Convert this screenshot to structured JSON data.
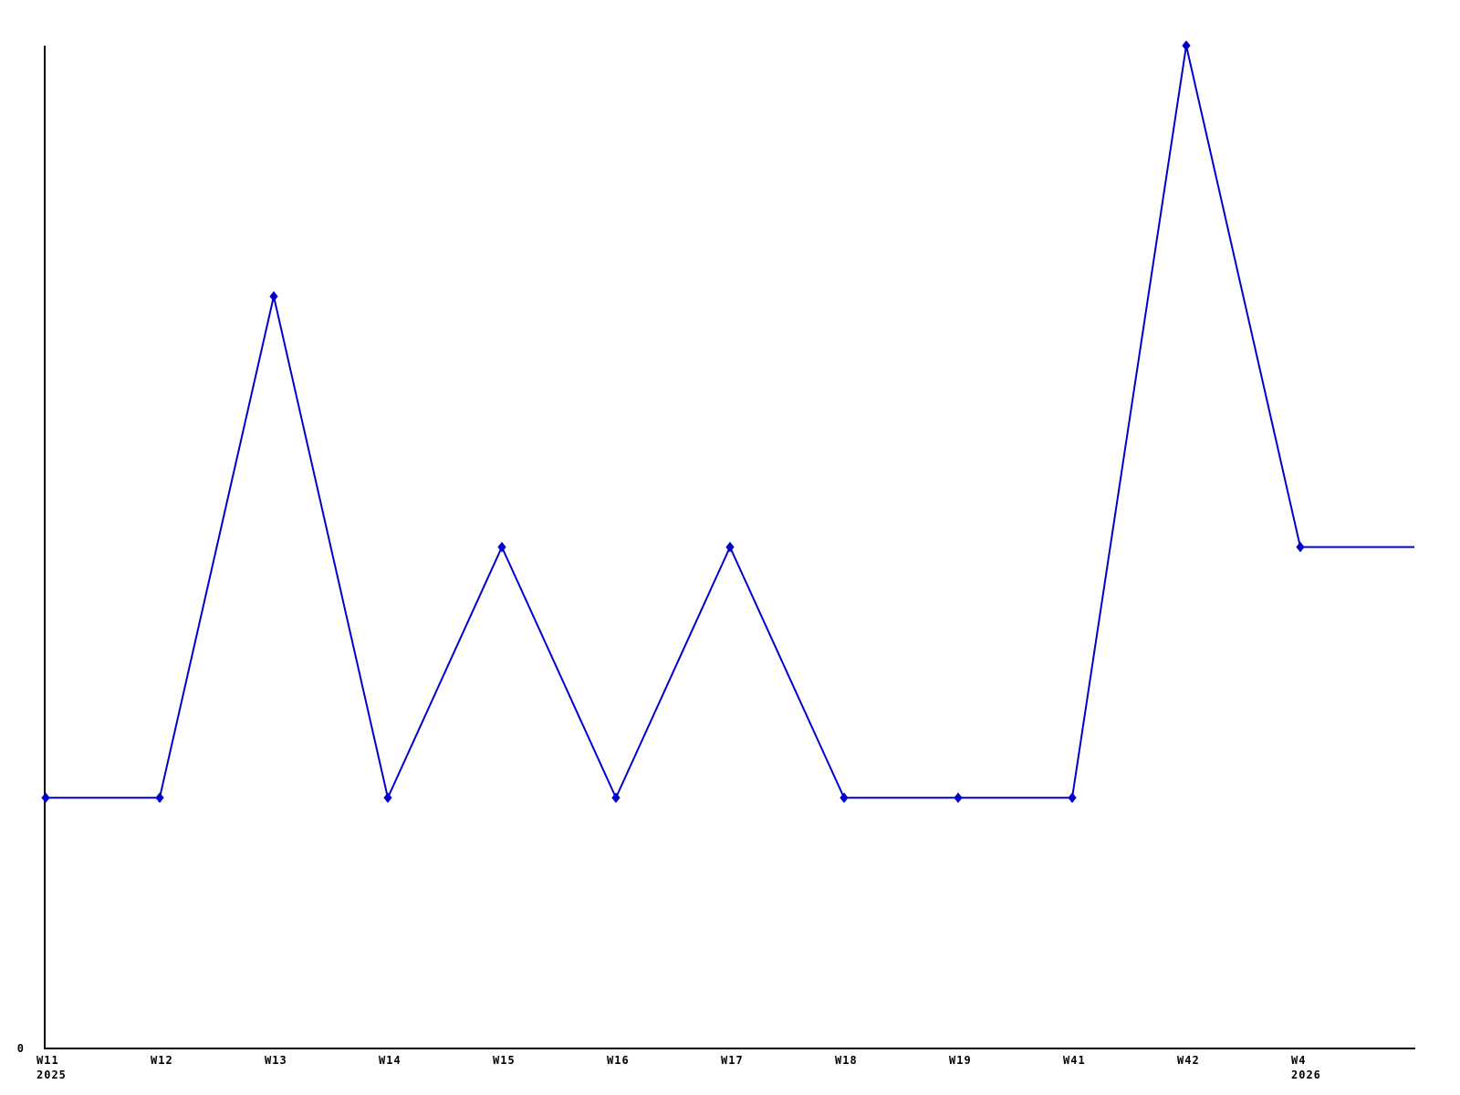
{
  "page": {
    "background_color": "#ffffff"
  },
  "chart_data": {
    "type": "line",
    "title": "",
    "categories": [
      "W11",
      "W12",
      "W13",
      "W14",
      "W15",
      "W16",
      "W17",
      "W18",
      "W19",
      "W41",
      "W42",
      "W4"
    ],
    "values": [
      1,
      1,
      3,
      1,
      2,
      1,
      2,
      1,
      1,
      1,
      4,
      2
    ],
    "trailing_value": 2,
    "year_labels": [
      {
        "index": 0,
        "text": "2025"
      },
      {
        "index": 11,
        "text": "2026"
      }
    ],
    "y_axis": {
      "zero_label": "0",
      "min": 0,
      "max": 4,
      "tick_labels_shown": [
        "0"
      ]
    },
    "line_color": "#0000cc",
    "marker_color": "#0000cc",
    "marker_shape": "diamond",
    "axis_color": "#000000",
    "text_color": "#000000",
    "grid": false,
    "legend": null
  }
}
